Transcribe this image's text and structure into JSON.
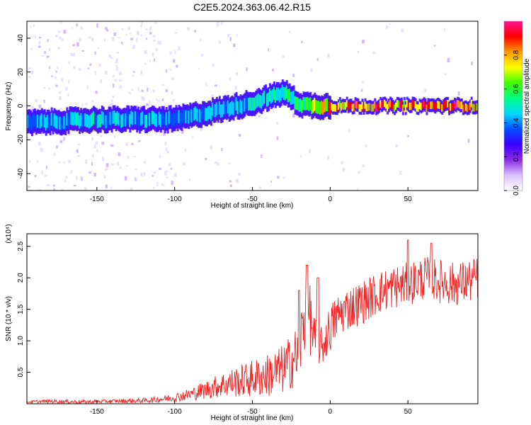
{
  "title": "C2E5.2024.363.06.42.R15",
  "chart_data": [
    {
      "type": "heatmap",
      "xlabel": "Height of straight line (km)",
      "ylabel": "Frequency (Hz)",
      "xlim": [
        -195,
        95
      ],
      "ylim": [
        -50,
        50
      ],
      "x_ticks": [
        -150,
        -100,
        -50,
        0,
        50
      ],
      "y_ticks": [
        -40,
        -20,
        0,
        20,
        40
      ],
      "colorbar": {
        "label": "Normalized spectral amplitude",
        "range": [
          0.0,
          1.0
        ],
        "ticks": [
          0.0,
          0.2,
          0.4,
          0.6,
          0.8
        ],
        "colors": [
          "#ffffff",
          "#d9c0ff",
          "#8a2be2",
          "#3a00ff",
          "#0050ff",
          "#00d8ff",
          "#00ff80",
          "#40ff00",
          "#ffff00",
          "#ff9900",
          "#ff0000",
          "#ff1493"
        ]
      },
      "ridge": {
        "description_x": [
          -195,
          -150,
          -120,
          -100,
          -80,
          -60,
          -50,
          -40,
          -30,
          -20,
          -10,
          0,
          20,
          40,
          60,
          80,
          95
        ],
        "center_freq_hz": [
          -10,
          -8,
          -8,
          -8,
          -4,
          0,
          2,
          5,
          8,
          1,
          0,
          0,
          0,
          0,
          0,
          0,
          0
        ],
        "peak_amplitude": [
          0.45,
          0.5,
          0.5,
          0.45,
          0.45,
          0.5,
          0.55,
          0.55,
          0.6,
          0.6,
          0.75,
          0.9,
          0.95,
          0.95,
          0.95,
          0.95,
          0.9
        ]
      }
    },
    {
      "type": "line",
      "xlabel": "Height of straight line (km)",
      "ylabel": "SNR (10 * v/v)",
      "y_multiplier": "(x10⁴)",
      "xlim": [
        -195,
        95
      ],
      "ylim": [
        0,
        2.7
      ],
      "x_ticks": [
        -150,
        -100,
        -50,
        0,
        50
      ],
      "y_ticks": [
        0.5,
        1.0,
        1.5,
        2.0,
        2.5
      ],
      "series": [
        {
          "color": "#ee2222",
          "x": [
            -195,
            -180,
            -160,
            -140,
            -120,
            -110,
            -100,
            -90,
            -80,
            -70,
            -60,
            -50,
            -40,
            -30,
            -20,
            -15,
            -10,
            -5,
            0,
            5,
            10,
            20,
            30,
            40,
            50,
            60,
            70,
            80,
            90,
            95
          ],
          "y": [
            0.03,
            0.04,
            0.03,
            0.04,
            0.05,
            0.07,
            0.1,
            0.15,
            0.22,
            0.3,
            0.35,
            0.4,
            0.45,
            0.55,
            0.8,
            1.6,
            1.0,
            0.9,
            1.2,
            1.4,
            1.5,
            1.6,
            1.75,
            1.85,
            1.9,
            2.0,
            1.95,
            1.9,
            1.95,
            2.0
          ],
          "spread": [
            0.02,
            0.03,
            0.03,
            0.03,
            0.04,
            0.05,
            0.07,
            0.1,
            0.15,
            0.2,
            0.25,
            0.3,
            0.35,
            0.4,
            0.5,
            0.7,
            0.4,
            0.3,
            0.4,
            0.35,
            0.35,
            0.35,
            0.35,
            0.35,
            0.35,
            0.35,
            0.35,
            0.35,
            0.35,
            0.35
          ],
          "notable_peaks": [
            {
              "x": -20,
              "y": 1.8
            },
            {
              "x": -15,
              "y": 2.2
            },
            {
              "x": -8,
              "y": 2.0
            },
            {
              "x": 50,
              "y": 2.6
            },
            {
              "x": 65,
              "y": 2.55
            }
          ]
        }
      ]
    }
  ]
}
